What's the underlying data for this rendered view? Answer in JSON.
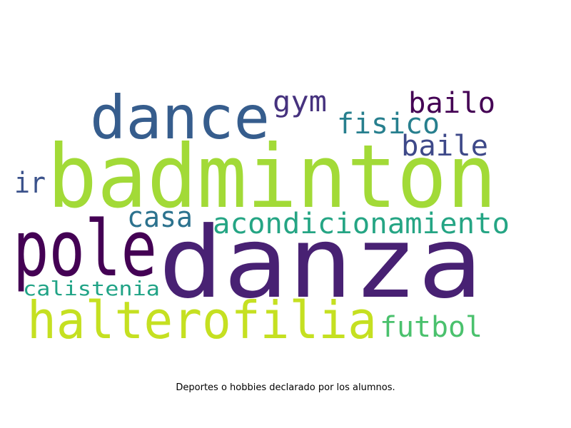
{
  "caption": "Deportes o hobbies declarado por los alumnos.",
  "words": [
    {
      "text": "danza",
      "color": "#482173"
    },
    {
      "text": "badminton",
      "color": "#a2da37"
    },
    {
      "text": "dance",
      "color": "#365d8d"
    },
    {
      "text": "pole",
      "color": "#440154"
    },
    {
      "text": "halterofilia",
      "color": "#c5e021"
    },
    {
      "text": "acondicionamiento",
      "color": "#25a584"
    },
    {
      "text": "gym",
      "color": "#46327e"
    },
    {
      "text": "bailo",
      "color": "#440154"
    },
    {
      "text": "fisico",
      "color": "#277f8e"
    },
    {
      "text": "baile",
      "color": "#3e4989"
    },
    {
      "text": "casa",
      "color": "#2c728e"
    },
    {
      "text": "ir",
      "color": "#3b528b"
    },
    {
      "text": "calistenia",
      "color": "#20a386"
    },
    {
      "text": "futbol",
      "color": "#4ac16d"
    }
  ]
}
